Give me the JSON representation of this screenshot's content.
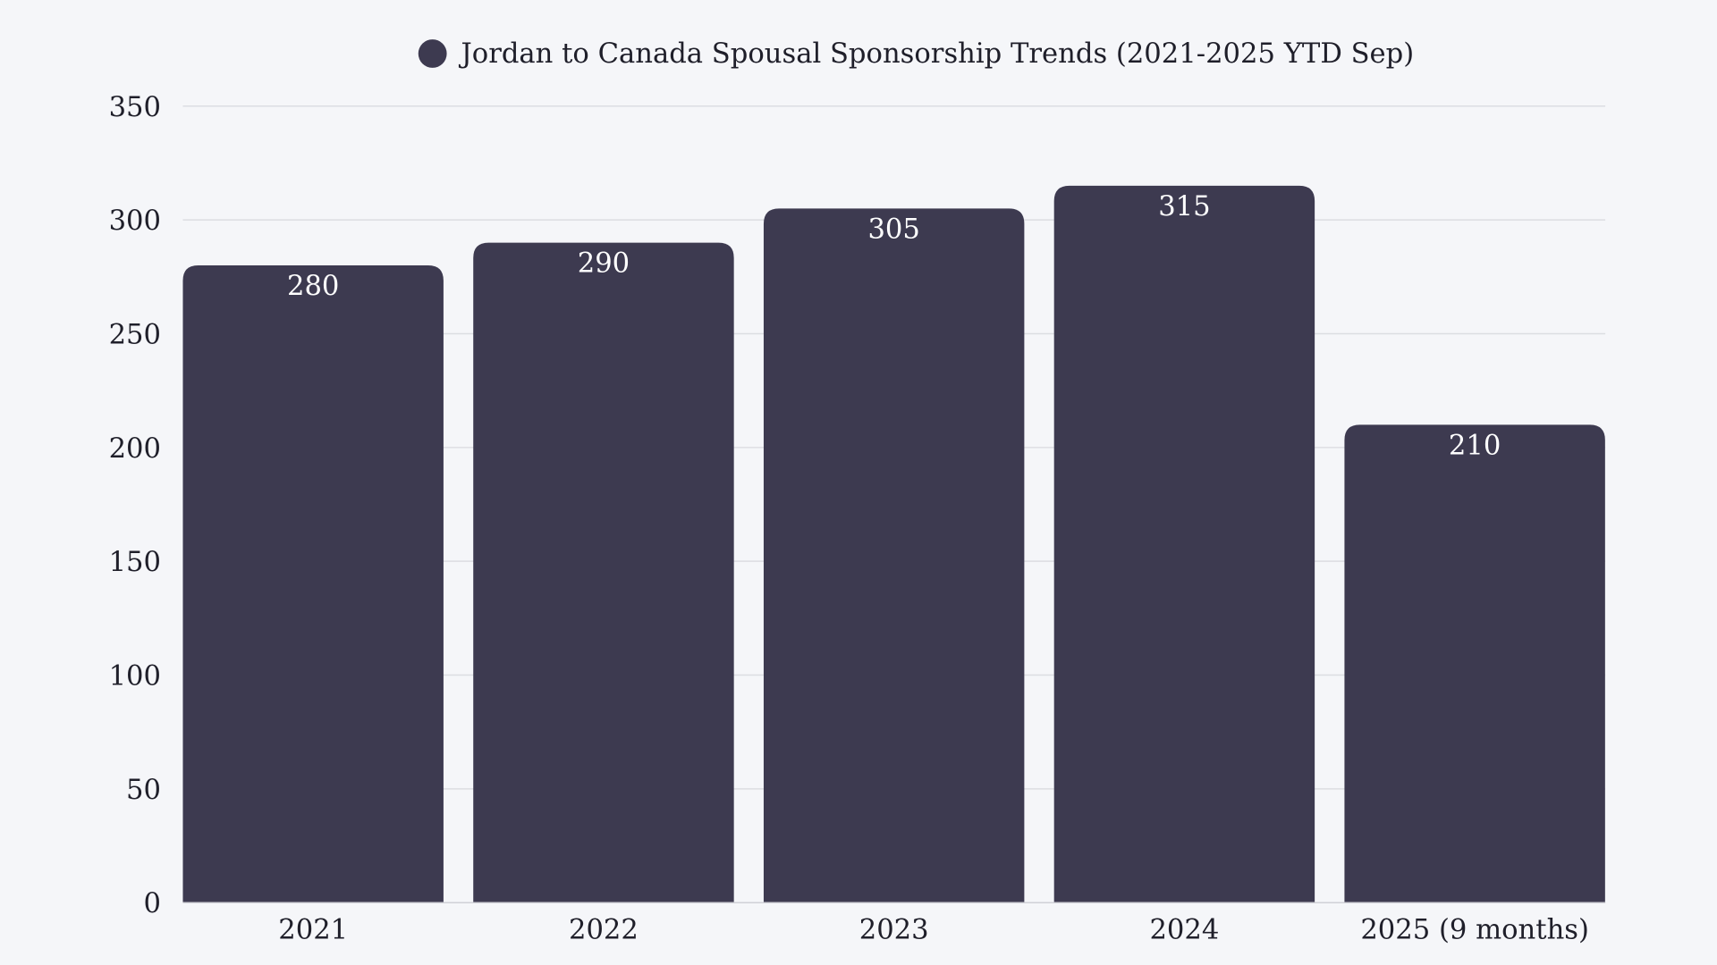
{
  "chart_data": {
    "type": "bar",
    "title": "",
    "legend": {
      "entries": [
        "Jordan to Canada Spousal Sponsorship Trends (2021-2025 YTD Sep)"
      ],
      "placement": "top-center"
    },
    "categories": [
      "2021",
      "2022",
      "2023",
      "2024",
      "2025 (9 months)"
    ],
    "series": [
      {
        "name": "Jordan to Canada Spousal Sponsorship Trends (2021-2025 YTD Sep)",
        "values": [
          280,
          290,
          305,
          315,
          210
        ],
        "color": "#3d3a50"
      }
    ],
    "data_labels": [
      "280",
      "290",
      "305",
      "315",
      "210"
    ],
    "xlabel": "",
    "ylabel": "",
    "ylim": [
      0,
      350
    ],
    "yticks": [
      "0",
      "50",
      "100",
      "150",
      "200",
      "250",
      "300",
      "350"
    ],
    "grid": true,
    "background": "#f5f6f9"
  }
}
